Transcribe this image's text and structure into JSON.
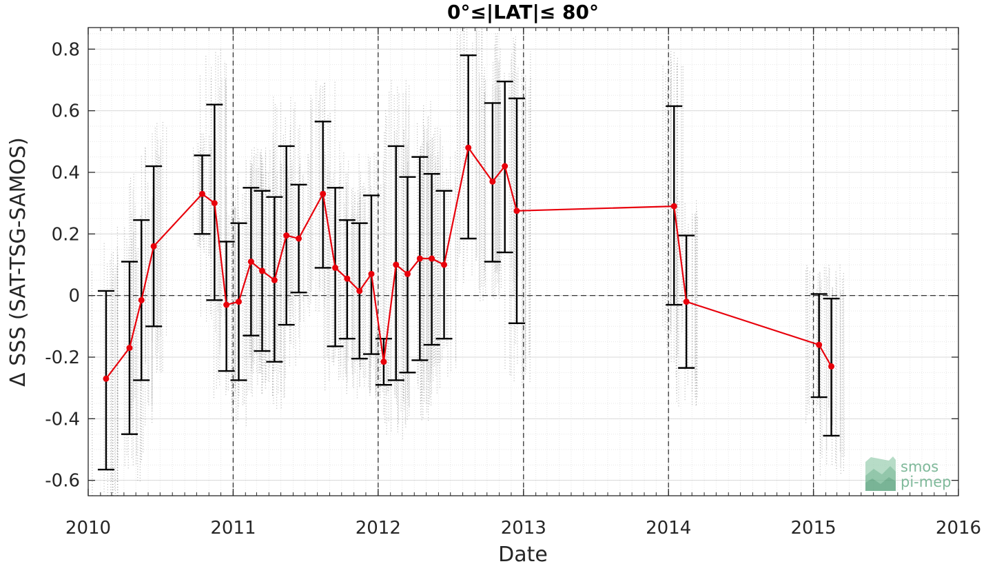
{
  "chart_data": {
    "type": "line",
    "title": "0°≤|LAT|≤ 80°",
    "xlabel": "Date",
    "ylabel": "Δ SSS (SAT-TSG-SAMOS)",
    "xlim": [
      "2010-01-01",
      "2016-01-01"
    ],
    "ylim": [
      -0.65,
      0.87
    ],
    "x_ticks": [
      "2010",
      "2011",
      "2012",
      "2013",
      "2014",
      "2015",
      "2016"
    ],
    "y_ticks": [
      "-0.6",
      "-0.4",
      "-0.2",
      "0",
      "0.2",
      "0.4",
      "0.6",
      "0.8"
    ],
    "grid": true,
    "reference_line_y": 0,
    "year_boundaries": [
      "2011-01-01",
      "2012-01-01",
      "2013-01-01",
      "2014-01-01",
      "2015-01-01"
    ],
    "series": [
      {
        "color": "#e8000b",
        "marker": "circle",
        "x": [
          "2010-02-15",
          "2010-04-15",
          "2010-05-15",
          "2010-06-15",
          "2010-10-15",
          "2010-11-15",
          "2010-12-15",
          "2011-01-15",
          "2011-02-15",
          "2011-03-15",
          "2011-04-15",
          "2011-05-15",
          "2011-06-15",
          "2011-08-15",
          "2011-09-15",
          "2011-10-15",
          "2011-11-15",
          "2011-12-15",
          "2012-01-15",
          "2012-02-15",
          "2012-03-15",
          "2012-04-15",
          "2012-05-15",
          "2012-06-15",
          "2012-08-15",
          "2012-10-15",
          "2012-11-15",
          "2012-12-15",
          "2014-01-15",
          "2014-02-15",
          "2015-01-15",
          "2015-02-15"
        ],
        "values": [
          -0.27,
          -0.17,
          -0.015,
          0.16,
          0.33,
          0.3,
          -0.03,
          -0.02,
          0.11,
          0.08,
          0.05,
          0.195,
          0.185,
          0.33,
          0.09,
          0.055,
          0.015,
          0.07,
          -0.215,
          0.1,
          0.07,
          0.12,
          0.12,
          0.1,
          0.48,
          0.37,
          0.42,
          0.275,
          0.29,
          -0.02,
          -0.16,
          -0.23
        ],
        "error_low": [
          -0.565,
          -0.45,
          -0.275,
          -0.1,
          0.2,
          -0.015,
          -0.245,
          -0.275,
          -0.13,
          -0.18,
          -0.215,
          -0.095,
          0.01,
          0.09,
          -0.165,
          -0.14,
          -0.205,
          -0.19,
          -0.29,
          -0.275,
          -0.25,
          -0.21,
          -0.16,
          -0.14,
          0.185,
          0.11,
          0.14,
          -0.09,
          -0.03,
          -0.235,
          -0.33,
          -0.455
        ],
        "error_high": [
          0.015,
          0.11,
          0.245,
          0.42,
          0.455,
          0.62,
          0.175,
          0.235,
          0.35,
          0.34,
          0.32,
          0.485,
          0.36,
          0.565,
          0.35,
          0.245,
          0.235,
          0.325,
          -0.14,
          0.485,
          0.385,
          0.45,
          0.395,
          0.34,
          0.78,
          0.625,
          0.695,
          0.64,
          0.615,
          0.195,
          0.005,
          -0.01
        ]
      }
    ]
  },
  "logo": {
    "line1": "smos",
    "line2": "pi-mep",
    "color": "#7fb99a"
  }
}
